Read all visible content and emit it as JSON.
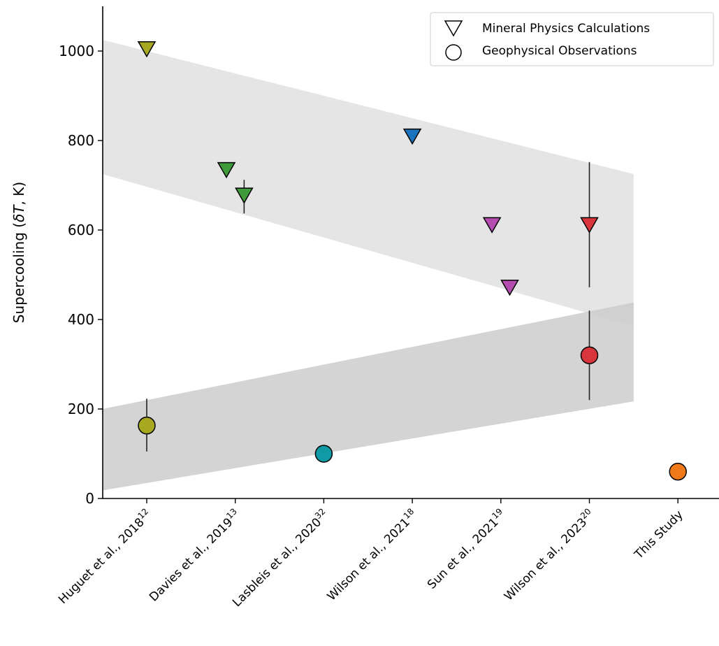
{
  "chart_data": {
    "type": "scatter",
    "ylabel": {
      "prefix": "Supercooling (",
      "italic_var": "δT",
      "suffix": ", K)"
    },
    "ylim": [
      0,
      1100
    ],
    "yticks": [
      0,
      200,
      400,
      600,
      800,
      1000
    ],
    "categories": [
      {
        "label": "Huguet et al., 2018",
        "ref": "12"
      },
      {
        "label": "Davies et al., 2019",
        "ref": "13"
      },
      {
        "label": "Lasbleis et al., 2020",
        "ref": "32"
      },
      {
        "label": "Wilson et al., 2021",
        "ref": "18"
      },
      {
        "label": "Sun et al., 2021",
        "ref": "19"
      },
      {
        "label": "Wilson et al., 2023",
        "ref": "20"
      },
      {
        "label": "This Study",
        "ref": ""
      }
    ],
    "legend": {
      "placement": "top-right",
      "entries": [
        {
          "marker": "triangle-down",
          "label": "Mineral Physics Calculations"
        },
        {
          "marker": "circle",
          "label": "Geophysical Observations"
        }
      ]
    },
    "bands": [
      {
        "name": "mineral-physics-band",
        "color": "#e5e5e5",
        "x": [
          -0.5,
          5.5
        ],
        "upper": [
          1025,
          725
        ],
        "lower": [
          725,
          385
        ]
      },
      {
        "name": "geophysical-band",
        "color": "#cccccc",
        "x": [
          -0.5,
          5.5
        ],
        "upper": [
          200,
          438
        ],
        "lower": [
          18,
          217
        ]
      }
    ],
    "series": [
      {
        "name": "Mineral Physics Calculations",
        "marker": "triangle-down",
        "points": [
          {
            "x": 0,
            "y": 1005,
            "color": "#a8a820"
          },
          {
            "x": 0.9,
            "y": 735,
            "color": "#3f9a3a",
            "err": [
              725,
              745
            ]
          },
          {
            "x": 1.1,
            "y": 678,
            "color": "#3f9a3a",
            "err": [
              637,
              712
            ]
          },
          {
            "x": 3,
            "y": 810,
            "color": "#1a73bd"
          },
          {
            "x": 3.9,
            "y": 612,
            "color": "#b54db0"
          },
          {
            "x": 4.1,
            "y": 472,
            "color": "#b54db0"
          },
          {
            "x": 5,
            "y": 612,
            "color": "#d8363c",
            "err": [
              472,
              752
            ]
          }
        ]
      },
      {
        "name": "Geophysical Observations",
        "marker": "circle",
        "points": [
          {
            "x": 0,
            "y": 163,
            "color": "#a8a820",
            "err": [
              105,
              223
            ]
          },
          {
            "x": 2,
            "y": 100,
            "color": "#0f9aa5"
          },
          {
            "x": 5,
            "y": 320,
            "color": "#d8363c",
            "err": [
              220,
              420
            ]
          },
          {
            "x": 6,
            "y": 60,
            "color": "#f07a1a"
          }
        ]
      }
    ]
  }
}
